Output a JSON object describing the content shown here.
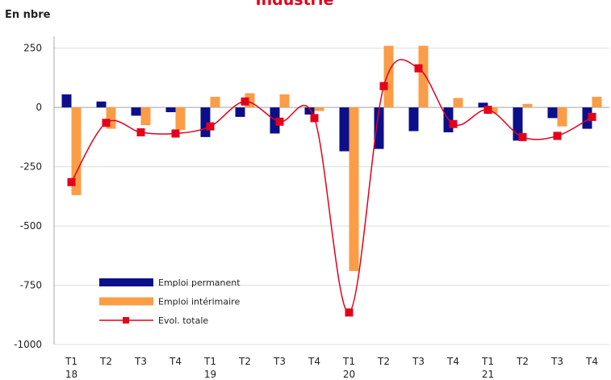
{
  "chart_data": {
    "type": "bar_line",
    "title": "Industrie",
    "y_label": "En nbre",
    "categories": [
      "T1",
      "T2",
      "T3",
      "T4",
      "T1",
      "T2",
      "T3",
      "T4",
      "T1",
      "T2",
      "T3",
      "T4",
      "T1",
      "T2",
      "T3",
      "T4"
    ],
    "category_groups": [
      "18",
      "19",
      "20",
      "21"
    ],
    "series": [
      {
        "name": "Emploi permanent",
        "color": "#0c0f8a",
        "kind": "bar",
        "values": [
          55,
          25,
          -35,
          -20,
          -125,
          -40,
          -110,
          -30,
          -185,
          -175,
          -100,
          -105,
          20,
          -140,
          -45,
          -90
        ]
      },
      {
        "name": "Emploi intérimaire",
        "color": "#fb9d47",
        "kind": "bar",
        "values": [
          -370,
          -90,
          -75,
          -95,
          45,
          60,
          55,
          -15,
          -690,
          260,
          260,
          40,
          -25,
          15,
          -80,
          45
        ]
      },
      {
        "name": "Evol. totale",
        "color": "#e3001b",
        "kind": "line",
        "values": [
          -315,
          -65,
          -105,
          -110,
          -80,
          25,
          -60,
          -45,
          -865,
          90,
          165,
          -70,
          -10,
          -125,
          -120,
          -40
        ]
      }
    ],
    "ylim": [
      -1000,
      300
    ],
    "yticks": [
      -1000,
      -750,
      -500,
      -250,
      0,
      250
    ],
    "grid": true
  }
}
